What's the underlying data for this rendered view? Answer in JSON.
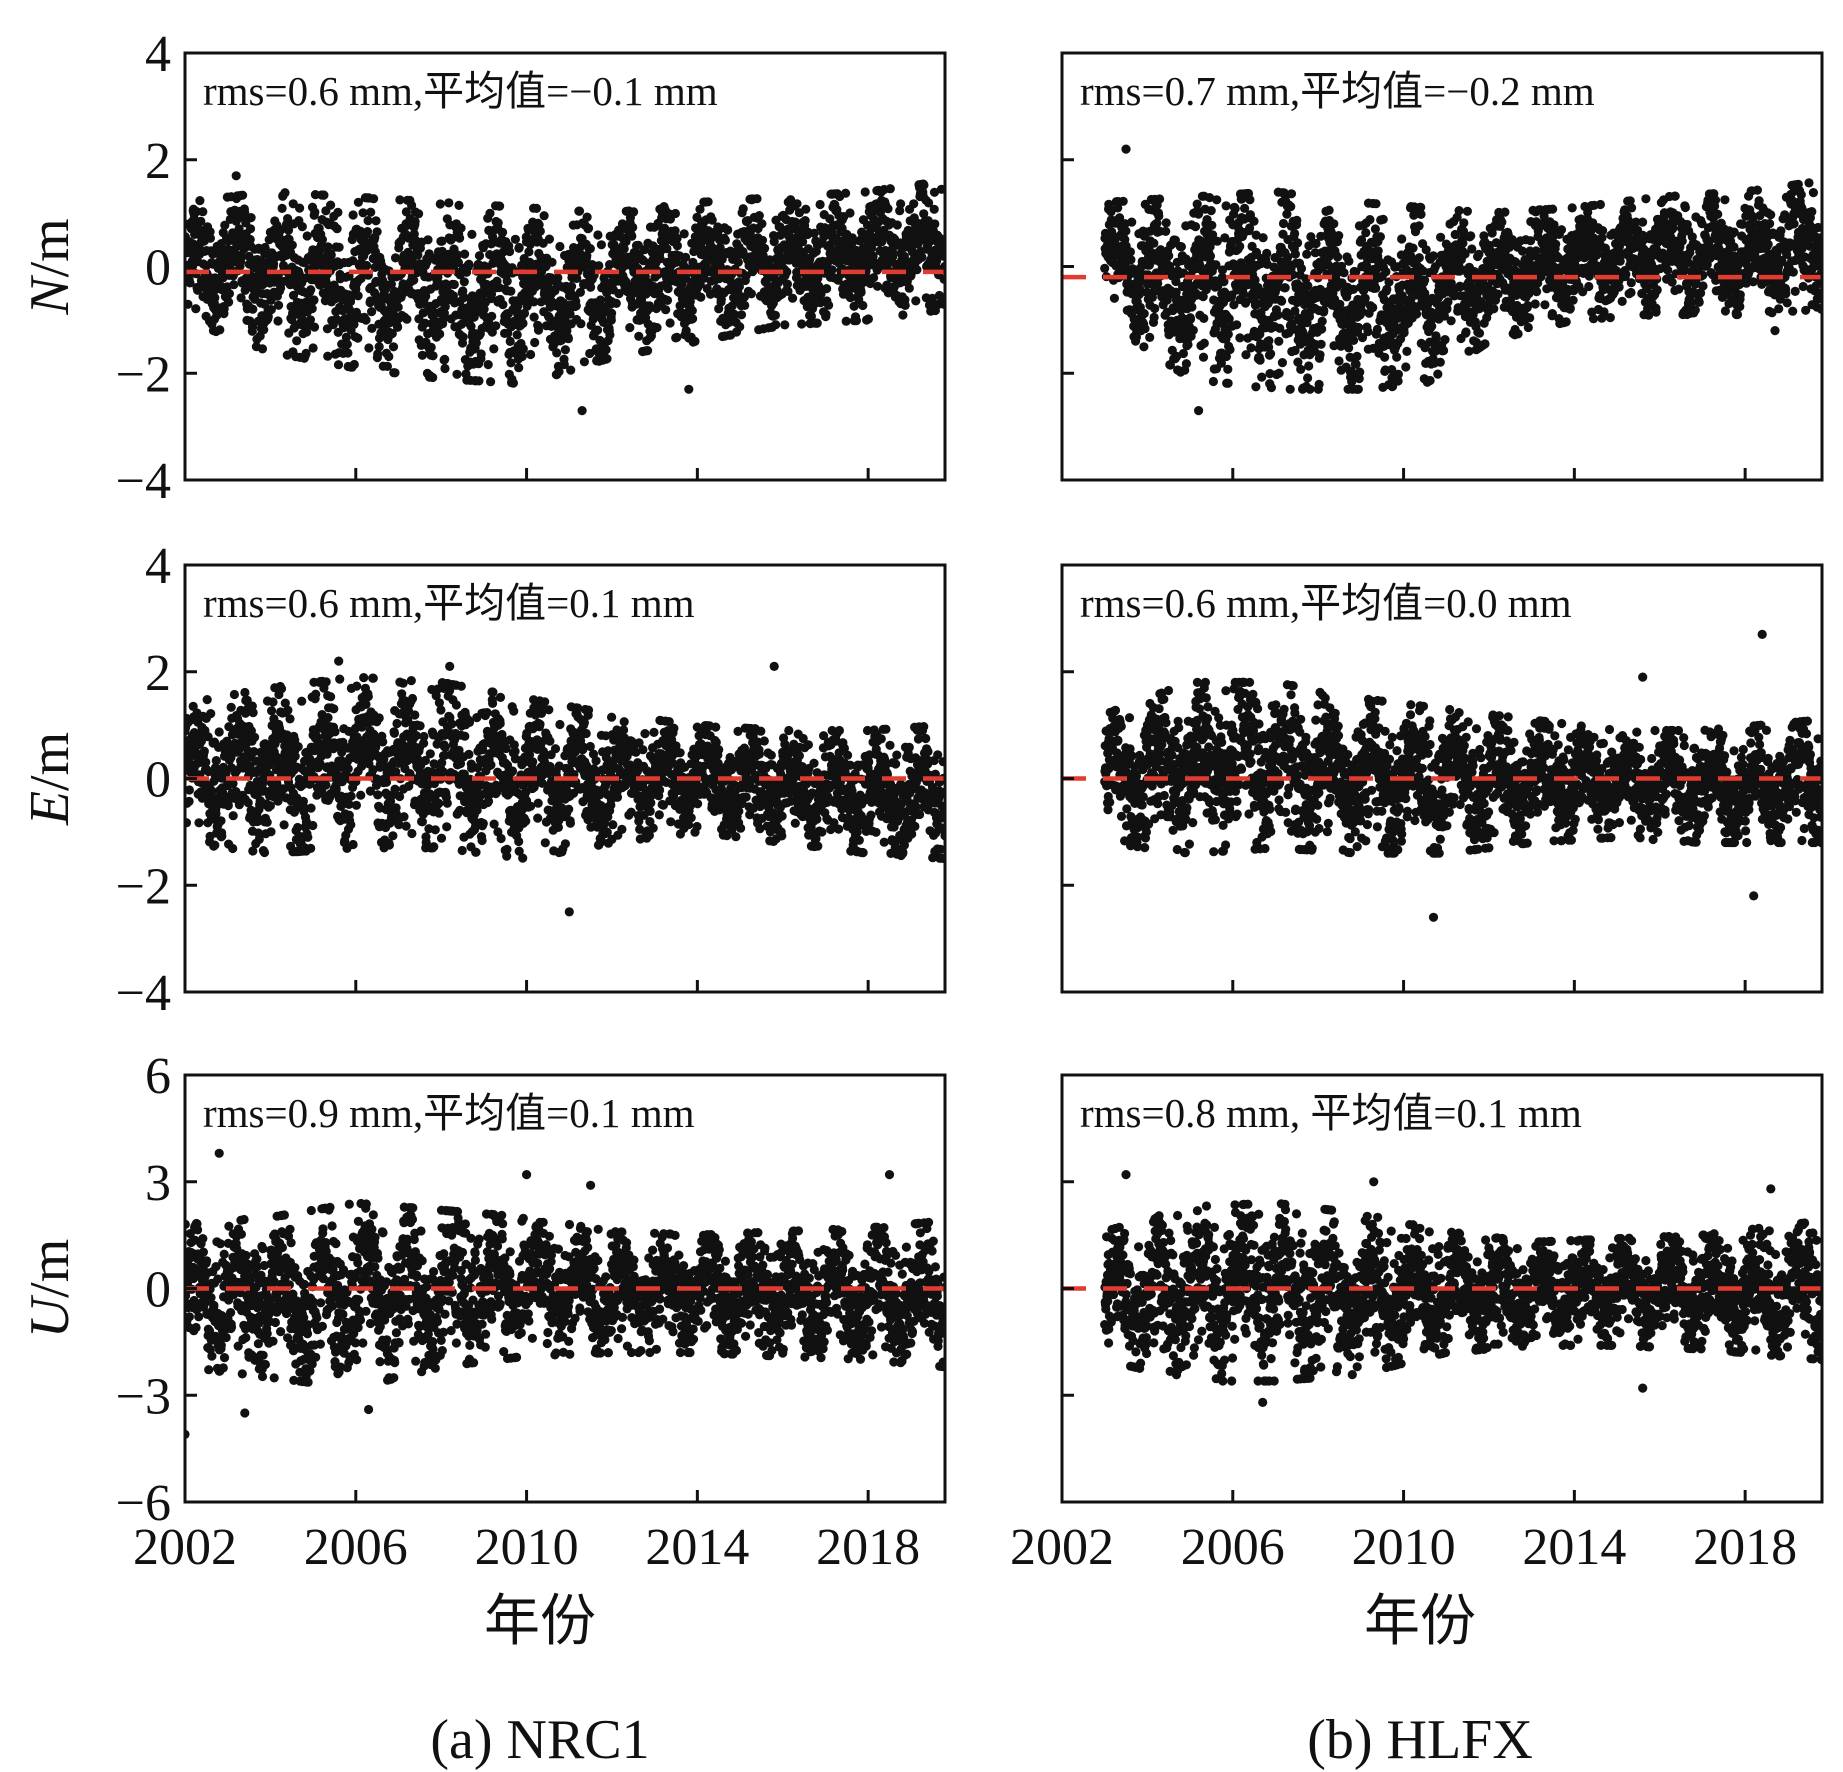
{
  "chart_data": [
    {
      "type": "scatter",
      "panel": "(a) NRC1",
      "component": "N",
      "ylabel_symbol": "N",
      "ylabel_unit": "/m",
      "annotation": "rms=0.6 mm,平均值=−0.1 mm",
      "rms": 0.6,
      "mean": -0.1,
      "xlim": [
        2002,
        2019.8
      ],
      "ylim": [
        -4,
        4
      ],
      "xticks": [
        2002,
        2006,
        2010,
        2014,
        2018
      ],
      "yticks": [
        -4,
        -2,
        0,
        2,
        4
      ],
      "data_start": 2002.0,
      "data_end": 2019.8,
      "envelope_min_max": [
        [
          2002.0,
          -1.0,
          1.2
        ],
        [
          2004.0,
          -1.6,
          1.4
        ],
        [
          2006.0,
          -1.9,
          1.3
        ],
        [
          2008.0,
          -2.1,
          1.2
        ],
        [
          2010.0,
          -2.2,
          1.1
        ],
        [
          2012.0,
          -1.7,
          1.0
        ],
        [
          2014.0,
          -1.4,
          1.2
        ],
        [
          2016.0,
          -1.1,
          1.3
        ],
        [
          2018.0,
          -1.0,
          1.4
        ],
        [
          2019.8,
          -0.8,
          1.6
        ]
      ],
      "outliers": [
        [
          2011.3,
          -2.7
        ],
        [
          2013.8,
          -2.3
        ],
        [
          2003.2,
          1.7
        ]
      ],
      "mean_line": -0.1,
      "colors": {
        "points": "#111111",
        "mean_line": "#e23b30"
      }
    },
    {
      "type": "scatter",
      "panel": "(b) HLFX",
      "component": "N",
      "ylabel_symbol": "N",
      "ylabel_unit": "/m",
      "annotation": "rms=0.7 mm,平均值=−0.2 mm",
      "rms": 0.7,
      "mean": -0.2,
      "xlim": [
        2002,
        2019.8
      ],
      "ylim": [
        -4,
        4
      ],
      "xticks": [
        2002,
        2006,
        2010,
        2014,
        2018
      ],
      "yticks": [
        -4,
        -2,
        0,
        2,
        4
      ],
      "data_start": 2003.0,
      "data_end": 2019.8,
      "envelope_min_max": [
        [
          2003.0,
          -1.0,
          1.2
        ],
        [
          2005.0,
          -2.1,
          1.3
        ],
        [
          2007.0,
          -2.3,
          1.4
        ],
        [
          2009.0,
          -2.3,
          1.2
        ],
        [
          2010.5,
          -2.2,
          1.1
        ],
        [
          2012.0,
          -1.4,
          1.0
        ],
        [
          2014.0,
          -1.0,
          1.1
        ],
        [
          2016.0,
          -0.9,
          1.3
        ],
        [
          2018.0,
          -0.9,
          1.4
        ],
        [
          2019.8,
          -0.8,
          1.6
        ]
      ],
      "outliers": [
        [
          2003.5,
          2.2
        ],
        [
          2005.2,
          -2.7
        ],
        [
          2018.7,
          -1.2
        ]
      ],
      "mean_line": -0.2,
      "colors": {
        "points": "#111111",
        "mean_line": "#e23b30"
      }
    },
    {
      "type": "scatter",
      "panel": "(a) NRC1",
      "component": "E",
      "ylabel_symbol": "E",
      "ylabel_unit": "/m",
      "annotation": "rms=0.6 mm,平均值=0.1 mm",
      "rms": 0.6,
      "mean": 0.1,
      "xlim": [
        2002,
        2019.8
      ],
      "ylim": [
        -4,
        4
      ],
      "xticks": [
        2002,
        2006,
        2010,
        2014,
        2018
      ],
      "yticks": [
        -4,
        -2,
        0,
        2,
        4
      ],
      "data_start": 2002.0,
      "data_end": 2019.8,
      "envelope_min_max": [
        [
          2002.0,
          -1.2,
          1.4
        ],
        [
          2004.0,
          -1.4,
          1.7
        ],
        [
          2006.0,
          -1.3,
          1.9
        ],
        [
          2008.0,
          -1.3,
          1.8
        ],
        [
          2010.0,
          -1.5,
          1.5
        ],
        [
          2012.0,
          -1.2,
          1.2
        ],
        [
          2014.0,
          -1.0,
          1.0
        ],
        [
          2016.0,
          -1.2,
          0.9
        ],
        [
          2018.0,
          -1.4,
          0.9
        ],
        [
          2019.8,
          -1.5,
          1.0
        ]
      ],
      "outliers": [
        [
          2011.0,
          -2.5
        ],
        [
          2015.8,
          2.1
        ],
        [
          2005.6,
          2.2
        ],
        [
          2008.2,
          2.1
        ]
      ],
      "mean_line": 0.0,
      "colors": {
        "points": "#111111",
        "mean_line": "#e23b30"
      }
    },
    {
      "type": "scatter",
      "panel": "(b) HLFX",
      "component": "E",
      "ylabel_symbol": "E",
      "ylabel_unit": "/m",
      "annotation": "rms=0.6 mm,平均值=0.0 mm",
      "rms": 0.6,
      "mean": 0.0,
      "xlim": [
        2002,
        2019.8
      ],
      "ylim": [
        -4,
        4
      ],
      "xticks": [
        2002,
        2006,
        2010,
        2014,
        2018
      ],
      "yticks": [
        -4,
        -2,
        0,
        2,
        4
      ],
      "data_start": 2003.0,
      "data_end": 2019.8,
      "envelope_min_max": [
        [
          2003.0,
          -1.2,
          1.2
        ],
        [
          2005.0,
          -1.4,
          1.8
        ],
        [
          2007.0,
          -1.3,
          1.8
        ],
        [
          2009.0,
          -1.4,
          1.5
        ],
        [
          2011.0,
          -1.4,
          1.3
        ],
        [
          2013.0,
          -1.2,
          1.1
        ],
        [
          2015.0,
          -1.1,
          0.9
        ],
        [
          2017.0,
          -1.2,
          0.9
        ],
        [
          2019.8,
          -1.2,
          1.1
        ]
      ],
      "outliers": [
        [
          2010.7,
          -2.6
        ],
        [
          2018.4,
          2.7
        ],
        [
          2018.2,
          -2.2
        ],
        [
          2015.6,
          1.9
        ]
      ],
      "mean_line": 0.0,
      "colors": {
        "points": "#111111",
        "mean_line": "#e23b30"
      }
    },
    {
      "type": "scatter",
      "panel": "(a) NRC1",
      "component": "U",
      "ylabel_symbol": "U",
      "ylabel_unit": "/m",
      "annotation": "rms=0.9 mm,平均值=0.1 mm",
      "rms": 0.9,
      "mean": 0.1,
      "xlim": [
        2002,
        2019.8
      ],
      "ylim": [
        -6,
        6
      ],
      "xticks": [
        2002,
        2006,
        2010,
        2014,
        2018
      ],
      "yticks": [
        -6,
        -3,
        0,
        3,
        6
      ],
      "data_start": 2002.0,
      "data_end": 2019.8,
      "envelope_min_max": [
        [
          2002.0,
          -2.2,
          1.8
        ],
        [
          2004.0,
          -2.5,
          2.0
        ],
        [
          2006.0,
          -2.8,
          2.4
        ],
        [
          2008.0,
          -2.2,
          2.2
        ],
        [
          2010.0,
          -1.9,
          2.0
        ],
        [
          2012.0,
          -1.8,
          1.6
        ],
        [
          2014.0,
          -1.8,
          1.5
        ],
        [
          2016.0,
          -1.9,
          1.6
        ],
        [
          2018.0,
          -2.0,
          1.7
        ],
        [
          2019.8,
          -2.2,
          1.9
        ]
      ],
      "outliers": [
        [
          2002.0,
          -4.1
        ],
        [
          2002.8,
          3.8
        ],
        [
          2003.4,
          -3.5
        ],
        [
          2006.3,
          -3.4
        ],
        [
          2010.0,
          3.2
        ],
        [
          2011.5,
          2.9
        ],
        [
          2018.5,
          3.2
        ]
      ],
      "mean_line": 0.0,
      "colors": {
        "points": "#111111",
        "mean_line": "#e23b30"
      }
    },
    {
      "type": "scatter",
      "panel": "(b) HLFX",
      "component": "U",
      "ylabel_symbol": "U",
      "ylabel_unit": "/m",
      "annotation": "rms=0.8 mm, 平均值=0.1 mm",
      "rms": 0.8,
      "mean": 0.1,
      "xlim": [
        2002,
        2019.8
      ],
      "ylim": [
        -6,
        6
      ],
      "xticks": [
        2002,
        2006,
        2010,
        2014,
        2018
      ],
      "yticks": [
        -6,
        -3,
        0,
        3,
        6
      ],
      "data_start": 2003.0,
      "data_end": 2019.8,
      "envelope_min_max": [
        [
          2003.0,
          -2.0,
          1.6
        ],
        [
          2005.0,
          -2.6,
          2.3
        ],
        [
          2007.0,
          -2.6,
          2.4
        ],
        [
          2009.0,
          -2.4,
          2.1
        ],
        [
          2011.0,
          -1.8,
          1.6
        ],
        [
          2013.0,
          -1.6,
          1.3
        ],
        [
          2015.0,
          -1.6,
          1.4
        ],
        [
          2017.0,
          -1.7,
          1.5
        ],
        [
          2019.8,
          -2.0,
          1.9
        ]
      ],
      "outliers": [
        [
          2003.5,
          3.2
        ],
        [
          2006.7,
          -3.2
        ],
        [
          2015.6,
          -2.8
        ],
        [
          2018.6,
          2.8
        ],
        [
          2009.3,
          3.0
        ]
      ],
      "mean_line": 0.0,
      "colors": {
        "points": "#111111",
        "mean_line": "#e23b30"
      }
    }
  ],
  "xlabel": "年份",
  "captions": [
    "(a) NRC1",
    "(b) HLFX"
  ]
}
